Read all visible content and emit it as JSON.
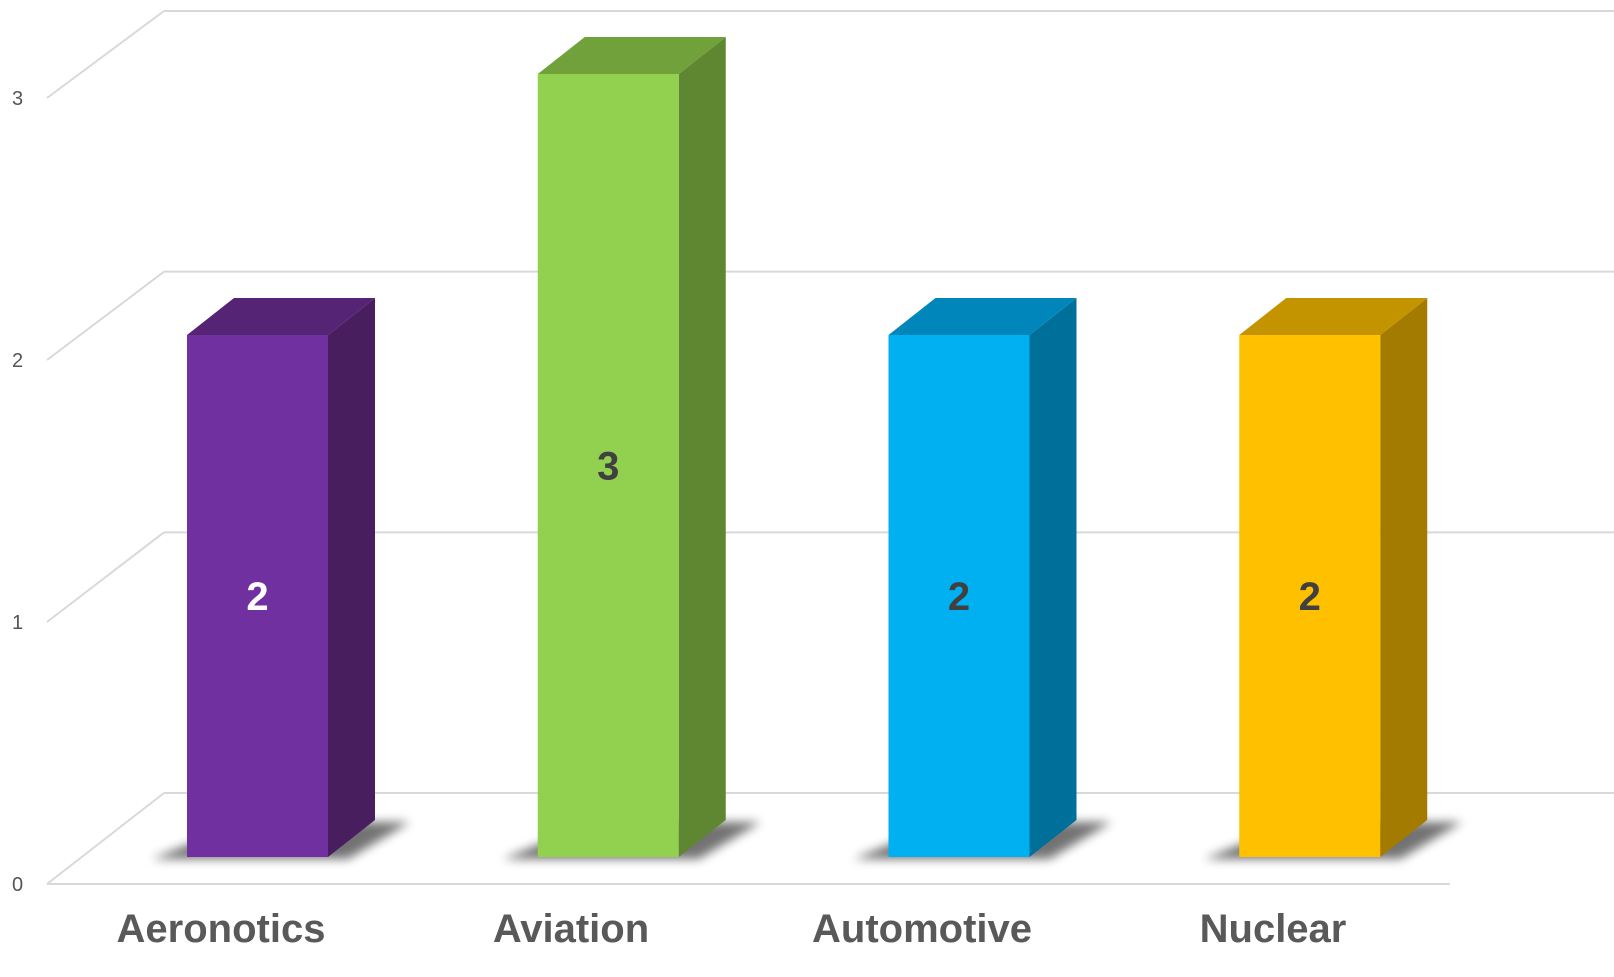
{
  "chart_data": {
    "type": "bar",
    "style": "3d-column",
    "categories": [
      "Aeronotics",
      "Aviation",
      "Automotive",
      "Nuclear"
    ],
    "values": [
      2,
      3,
      2,
      2
    ],
    "data_labels": [
      "2",
      "3",
      "2",
      "2"
    ],
    "title": "",
    "xlabel": "",
    "ylabel": "",
    "ylim": [
      0,
      3
    ],
    "yticks": [
      "0",
      "1",
      "2",
      "3"
    ],
    "grid": true,
    "legend": "none",
    "colors": {
      "bars": [
        {
          "front": "#7030A0",
          "side": "#481E5F",
          "top": "#552474",
          "label": "#FFFFFF"
        },
        {
          "front": "#92D050",
          "side": "#5F8731",
          "top": "#70A13B",
          "label": "#404040"
        },
        {
          "front": "#00B0F0",
          "side": "#006F99",
          "top": "#0086BA",
          "label": "#404040"
        },
        {
          "front": "#FFC000",
          "side": "#A37B00",
          "top": "#C49300",
          "label": "#404040"
        }
      ],
      "grid": "#D9D9D9",
      "axis_text": "#555555",
      "category_text": "#595959"
    }
  }
}
